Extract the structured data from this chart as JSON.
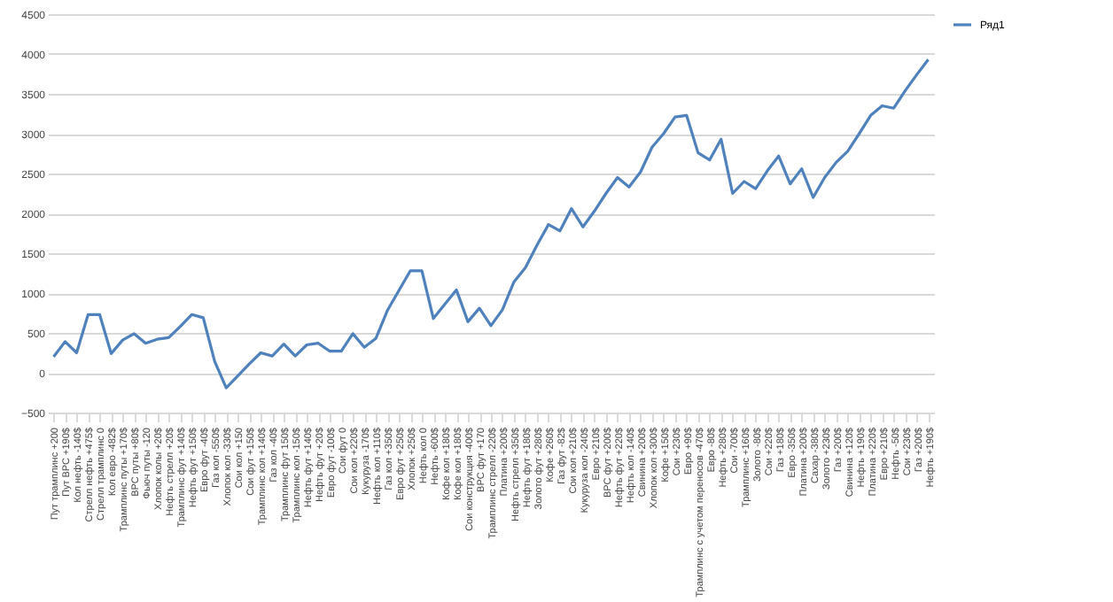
{
  "chart_data": {
    "type": "line",
    "categories": [
      "Пут трамплинс +200",
      "Пут ВРС +190$",
      "Кол нефть -140$",
      "Стрелл нефть +475$",
      "Стрелл трамплинс 0",
      "Кол евро -482$",
      "Трамплинс путы +170$",
      "ВРС путы +80$",
      "Фьюч путы -120",
      "Хлопок колы +20$",
      "Нефть стрелл +20$",
      "Трамплинс фут +140$",
      "Нефть фут +150$",
      "Евро фут -40$",
      "Газ кол -550$",
      "Хлопок кол -330$",
      "Сои кол +150",
      "Сои фут +150$",
      "Трамплинс кол +140$",
      "Газ кол -40$",
      "Трамплинс фут 150$",
      "Трамплинс кол -150$",
      "Нефть фут +140$",
      "Нефть фут +20$",
      "Евро фут -100$",
      "Сои фут 0",
      "Сои кол +220$",
      "Кукуруза -170$",
      "Нефть кол +110$",
      "Газ кол +350$",
      "Евро фут +250$",
      "Хлопок +250$",
      "Нефть кол 0",
      "Нефть -600$",
      "Кофе кол +180$",
      "Кофе кол +180$",
      "Сои конструкция -400$",
      "ВРС фут +170",
      "Трамплинс стрелл -220$",
      "Платина +200$",
      "Нефть стрелл +350$",
      "Нефть фут +180$",
      "Золото фут +280$",
      "Кофе +260$",
      "Газ фут -82$",
      "Сои кол +210$",
      "Кукуруза кол -240$",
      "Евро +210$",
      "ВРС фут +200$",
      "Нефть фут +220$",
      "Нефть кол -140$",
      "Свинина +200$",
      "Хлопок кол +300$",
      "Кофе +150$",
      "Сои +230$",
      "Евро +90$",
      "Трамплинс с учетом переносов -470$",
      "Евро -80$",
      "Нефть +280$",
      "Сои -700$",
      "Трамплинс +160$",
      "Золото -80$",
      "Сои +220$",
      "Газ +180$",
      "Евро -350$",
      "Платина +200$",
      "Сахар -380$",
      "Золото +230$",
      "Газ +200$",
      "Свинина +120$",
      "Нефть +190$",
      "Платина +220$",
      "Евро +210$",
      "Нефть -50$",
      "Сои +230$",
      "Газ +200$",
      "Нефть +190$"
    ],
    "series": [
      {
        "name": "Ряд1",
        "color": "#4f81bd",
        "values": [
          200,
          390,
          250,
          730,
          730,
          240,
          410,
          490,
          370,
          420,
          440,
          580,
          730,
          690,
          140,
          -190,
          -40,
          110,
          250,
          210,
          360,
          210,
          350,
          370,
          270,
          270,
          490,
          320,
          430,
          780,
          1030,
          1280,
          1280,
          680,
          860,
          1040,
          640,
          810,
          590,
          790,
          1140,
          1320,
          1600,
          1860,
          1780,
          2060,
          1830,
          2030,
          2250,
          2450,
          2330,
          2520,
          2830,
          3000,
          3210,
          3230,
          2760,
          2670,
          2930,
          2250,
          2400,
          2310,
          2530,
          2720,
          2370,
          2560,
          2200,
          2450,
          2640,
          2780,
          3000,
          3230,
          3350,
          3320,
          3540,
          3740,
          3930
        ]
      }
    ],
    "ylim": [
      -500,
      4500
    ],
    "yticks": [
      -500,
      0,
      500,
      1000,
      1500,
      2000,
      2500,
      3000,
      3500,
      4000,
      4500
    ],
    "grid": "y",
    "legend": "right",
    "marker": "none",
    "line_style": "solid"
  }
}
